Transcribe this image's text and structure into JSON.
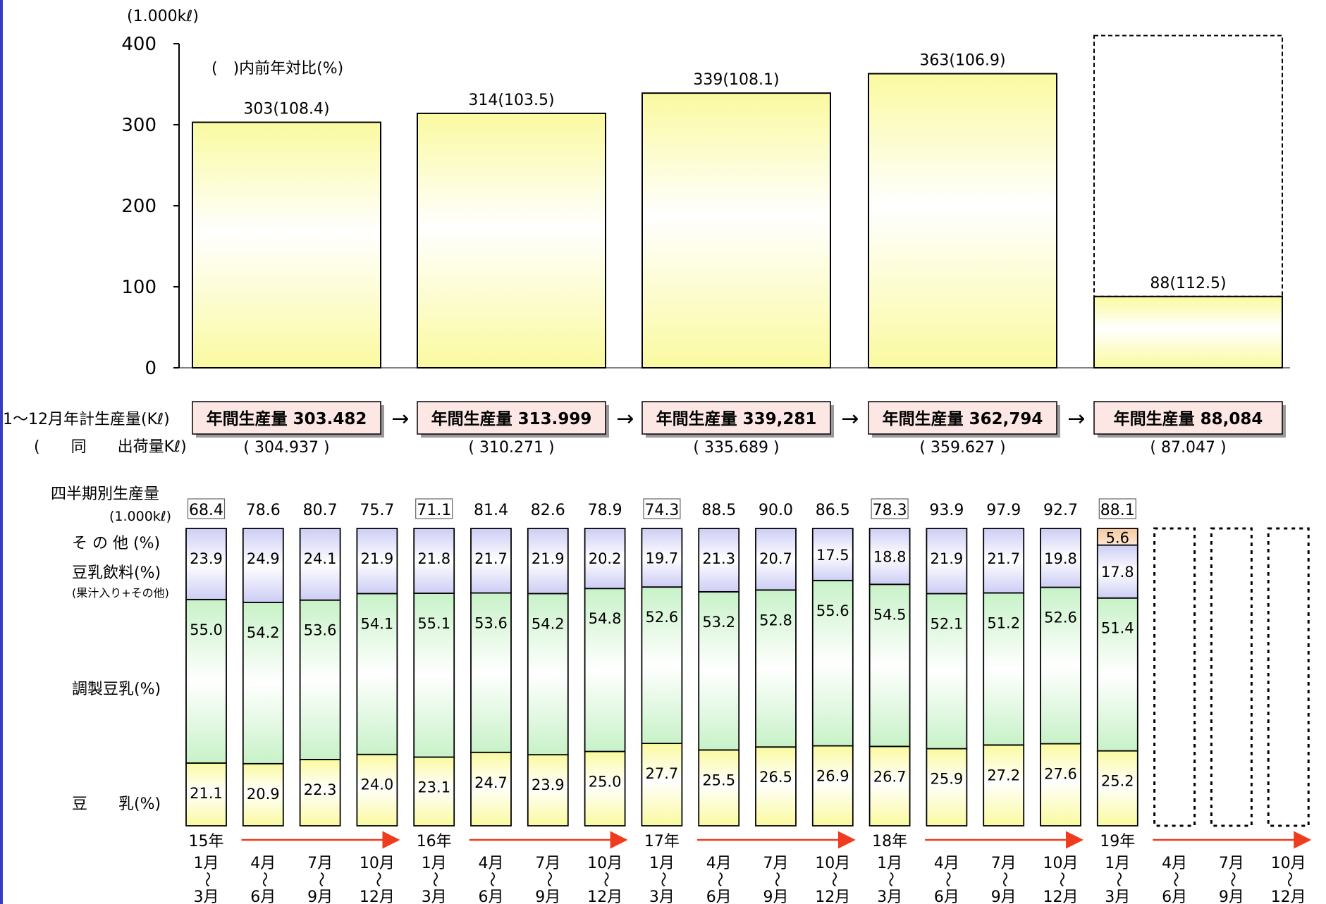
{
  "chart_data": [
    {
      "type": "bar",
      "unit_label": "(1.000kℓ)",
      "note": "(　)内前年対比(%)",
      "ylim": [
        0,
        400
      ],
      "yticks": [
        0,
        100,
        200,
        300,
        400
      ],
      "categories": [
        "15年",
        "16年",
        "17年",
        "18年",
        "19年"
      ],
      "values": [
        303,
        314,
        339,
        363,
        88
      ],
      "yoy": [
        108.4,
        103.5,
        108.1,
        106.9,
        112.5
      ],
      "bar_labels": [
        "303(108.4)",
        "314(103.5)",
        "339(108.1)",
        "363(106.9)",
        "88(112.5)"
      ],
      "projected_outline_top": 410
    },
    {
      "type": "stacked_bar_100",
      "series": [
        {
          "name": "豆　　乳(%)",
          "values": [
            21.1,
            20.9,
            22.3,
            24.0,
            23.1,
            24.7,
            23.9,
            25.0,
            27.7,
            25.5,
            26.5,
            26.9,
            26.7,
            25.9,
            27.2,
            27.6,
            25.2
          ]
        },
        {
          "name": "調製豆乳(%)",
          "values": [
            55.0,
            54.2,
            53.6,
            54.1,
            55.1,
            53.6,
            54.2,
            54.8,
            52.6,
            53.2,
            52.8,
            55.6,
            54.5,
            52.1,
            51.2,
            52.6,
            51.4
          ]
        },
        {
          "name": "豆乳飲料(%)",
          "values": [
            23.9,
            24.9,
            24.1,
            21.9,
            21.8,
            21.7,
            21.9,
            20.2,
            19.7,
            21.3,
            20.7,
            17.5,
            18.8,
            21.9,
            21.7,
            19.8,
            17.8
          ]
        },
        {
          "name": "その他(%)",
          "values": [
            null,
            null,
            null,
            null,
            null,
            null,
            null,
            null,
            null,
            null,
            null,
            null,
            null,
            null,
            null,
            null,
            5.6
          ]
        }
      ],
      "quarterly_production": [
        "68.4",
        "78.6",
        "80.7",
        "75.7",
        "71.1",
        "81.4",
        "82.6",
        "78.9",
        "74.3",
        "88.5",
        "90.0",
        "86.5",
        "78.3",
        "93.9",
        "97.9",
        "92.7",
        "88.1"
      ],
      "boxed_quarters": [
        0,
        4,
        8,
        12,
        16
      ],
      "empty_quarters": 3
    }
  ],
  "annual": {
    "row1_label": "1〜12月年計生産量(Kℓ)",
    "row2_label": "(　　同　　出荷量Kℓ)",
    "prod_labels": [
      "年間生産量 303.482",
      "年間生産量 313.999",
      "年間生産量 339,281",
      "年間生産量 362,794",
      "年間生産量 88,084"
    ],
    "ship_labels": [
      "( 304.937 )",
      "( 310.271 )",
      "( 335.689 )",
      "( 359.627 )",
      "( 87.047 )"
    ],
    "arrow": "→"
  },
  "quarter_section": {
    "title": "四半期別生産量",
    "unit": "(1.000kℓ)",
    "legend_other": "そ の 他 (%)",
    "legend_drink": "豆乳飲料(%)",
    "legend_drink_sub": "(果汁入り+その他)",
    "legend_adjusted": "調製豆乳(%)",
    "legend_soymilk": "豆　　乳(%)"
  },
  "timeline": {
    "years": [
      "15年",
      "16年",
      "17年",
      "18年",
      "19年"
    ],
    "quarters": [
      {
        "start": "1月",
        "tilde": "〜",
        "end": "3月"
      },
      {
        "start": "4月",
        "tilde": "〜",
        "end": "6月"
      },
      {
        "start": "7月",
        "tilde": "〜",
        "end": "9月"
      },
      {
        "start": "10月",
        "tilde": "〜",
        "end": "12月"
      }
    ]
  },
  "colors": {
    "annual_fill": "#fafaa0",
    "soymilk_fill": "#fafaa0",
    "adjusted_fill": "#c8f2c8",
    "drink_fill": "#cdcdf5",
    "other_fill": "#f5c8a0",
    "prod_box_fill": "#fde7e4",
    "timeline_arrow": "#f03c1e",
    "accent": "#3a3ac8"
  }
}
